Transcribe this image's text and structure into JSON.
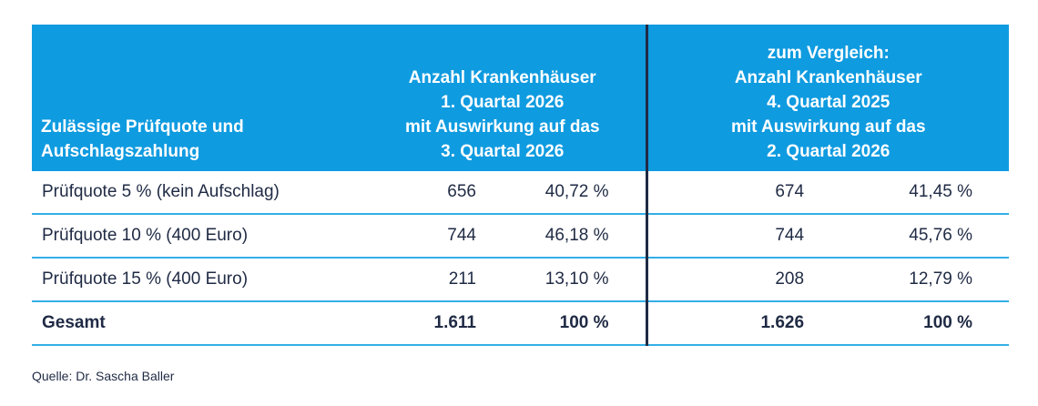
{
  "table": {
    "header": {
      "label": [
        "Zulässige Prüfquote und",
        "Aufschlagszahlung"
      ],
      "group1": [
        "Anzahl Krankenhäuser",
        "1. Quartal 2026",
        "mit Auswirkung auf das",
        "3. Quartal 2026"
      ],
      "group2": [
        "zum Vergleich:",
        "Anzahl Krankenhäuser",
        "4. Quartal 2025",
        "mit Auswirkung auf das",
        "2. Quartal 2026"
      ]
    },
    "rows": [
      {
        "label": "Prüfquote 5 % (kein Aufschlag)",
        "count_q1_2026": "656",
        "pct_q1_2026": "40,72 %",
        "count_q4_2025": "674",
        "pct_q4_2025": "41,45 %"
      },
      {
        "label": "Prüfquote 10 % (400 Euro)",
        "count_q1_2026": "744",
        "pct_q1_2026": "46,18 %",
        "count_q4_2025": "744",
        "pct_q4_2025": "45,76 %"
      },
      {
        "label": "Prüfquote 15 % (400 Euro)",
        "count_q1_2026": "211",
        "pct_q1_2026": "13,10 %",
        "count_q4_2025": "208",
        "pct_q4_2025": "12,79 %"
      },
      {
        "label": "Gesamt",
        "count_q1_2026": "1.611",
        "pct_q1_2026": "100 %",
        "count_q4_2025": "1.626",
        "pct_q4_2025": "100 %"
      }
    ],
    "colors": {
      "header_bg": "#0f9be0",
      "row_line": "#33aee6",
      "divider": "#1f2a44"
    }
  },
  "source": "Quelle: Dr. Sascha Baller"
}
